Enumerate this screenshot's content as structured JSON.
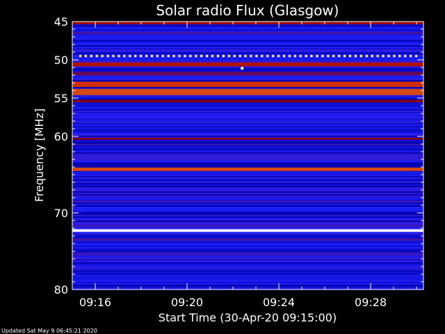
{
  "chart_data": {
    "type": "heatmap",
    "title": "Solar radio Flux (Glasgow)",
    "xlabel": "Start Time (30-Apr-20 09:15:00)",
    "ylabel": "Frequency [MHz]",
    "x_ticks": [
      {
        "label": "09:16",
        "minutes": 1
      },
      {
        "label": "09:20",
        "minutes": 5
      },
      {
        "label": "09:24",
        "minutes": 9
      },
      {
        "label": "09:28",
        "minutes": 13
      }
    ],
    "xlim_minutes": [
      0,
      15.3
    ],
    "y_ticks": [
      45,
      50,
      55,
      60,
      70,
      80
    ],
    "ylim_mhz": [
      45,
      80
    ],
    "y_reversed": true,
    "bands": [
      {
        "mhz": 45.2,
        "width": 0.3,
        "level": 0.55
      },
      {
        "mhz": 46.5,
        "width": 0.25,
        "level": 0.4
      },
      {
        "mhz": 49.5,
        "width": 0.3,
        "level": 0.85,
        "dotted": true
      },
      {
        "mhz": 50.6,
        "width": 0.5,
        "level": 0.6
      },
      {
        "mhz": 51.8,
        "width": 0.4,
        "level": 0.45
      },
      {
        "mhz": 53.2,
        "width": 0.7,
        "level": 0.68
      },
      {
        "mhz": 54.2,
        "width": 0.8,
        "level": 0.7
      },
      {
        "mhz": 55.4,
        "width": 0.3,
        "level": 0.5
      },
      {
        "mhz": 57.5,
        "width": 0.3,
        "level": 0.35
      },
      {
        "mhz": 60.3,
        "width": 0.25,
        "level": 0.5
      },
      {
        "mhz": 64.3,
        "width": 0.45,
        "level": 0.7
      },
      {
        "mhz": 67.0,
        "width": 0.25,
        "level": 0.35
      },
      {
        "mhz": 68.5,
        "width": 0.25,
        "level": 0.38
      },
      {
        "mhz": 72.3,
        "width": 0.35,
        "level": 1.0
      },
      {
        "mhz": 73.5,
        "width": 0.25,
        "level": 0.4
      },
      {
        "mhz": 76.3,
        "width": 0.2,
        "level": 0.35
      }
    ],
    "bursts": [
      {
        "minutes": 0.9,
        "mhz": 50.6,
        "level": 0.6
      },
      {
        "minutes": 7.4,
        "mhz": 51.1,
        "level": 0.9
      }
    ],
    "colormap": [
      "#000000",
      "#0000aa",
      "#2020ff",
      "#8a0000",
      "#cc1a00",
      "#ffff66",
      "#ffffff"
    ]
  },
  "footer": {
    "updated": "Updated Sat May  9 06:45:21 2020"
  }
}
